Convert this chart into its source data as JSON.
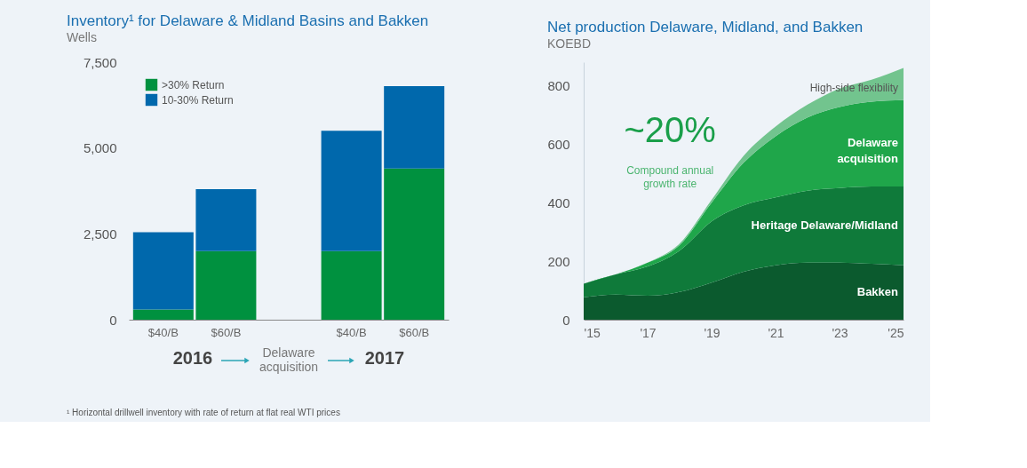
{
  "chart_data": [
    {
      "type": "bar",
      "title": "Inventory¹ for Delaware & Midland Basins and Bakken",
      "ylabel": "Wells",
      "categories": [
        "$40/B",
        "$60/B",
        null,
        "$40/B",
        "$60/B"
      ],
      "series": [
        {
          "name": ">30% Return",
          "color": "#00913f",
          "values": [
            300,
            2000,
            null,
            2000,
            4400
          ]
        },
        {
          "name": "10-30% Return",
          "color": "#0068ac",
          "values": [
            2250,
            1800,
            null,
            3500,
            2400
          ]
        }
      ],
      "stacked": true,
      "ylim": [
        0,
        7500
      ],
      "yticks": [
        0,
        {
          "value": 2500,
          "label": "2,500"
        },
        {
          "value": 5000,
          "label": "5,000"
        },
        {
          "value": 7500,
          "label": "7,500"
        }
      ],
      "legend": "top left",
      "grid": false,
      "annotations": [
        "2016",
        "Delaware acquisition",
        "2017",
        "¹ Horizontal drillwell inventory with rate of return at flat real WTI prices"
      ]
    },
    {
      "type": "area",
      "title": "Net production Delaware, Midland, and Bakken",
      "ylabel": "KOEBD",
      "x": [
        2015,
        2016,
        2017,
        2018,
        2019,
        2020,
        2021,
        2022,
        2023,
        2024,
        2025
      ],
      "series": [
        {
          "name": "Bakken",
          "color": "#0b5a2e",
          "values": [
            77,
            86,
            82,
            95,
            127,
            164,
            186,
            195,
            195,
            191,
            186
          ]
        },
        {
          "name": "Heritage Delaware/Midland",
          "color": "#0f7a3a",
          "values": [
            46,
            69,
            100,
            141,
            209,
            227,
            232,
            246,
            255,
            264,
            269
          ]
        },
        {
          "name": "Delaware acquisition",
          "color": "#1fa64a",
          "values": [
            0,
            0,
            13,
            19,
            64,
            145,
            209,
            250,
            277,
            290,
            295
          ]
        },
        {
          "name": "High-side flexibility",
          "color": "#72c48e",
          "values": [
            0,
            0,
            0,
            5,
            10,
            24,
            33,
            44,
            63,
            75,
            110
          ]
        }
      ],
      "stacked": true,
      "xlim": [
        2015,
        2025
      ],
      "ylim": [
        0,
        880
      ],
      "xticks": [
        {
          "value": 2015,
          "label": "'15"
        },
        {
          "value": 2017,
          "label": "'17"
        },
        {
          "value": 2019,
          "label": "'19"
        },
        {
          "value": 2021,
          "label": "'21"
        },
        {
          "value": 2023,
          "label": "'23"
        },
        {
          "value": 2025,
          "label": "'25"
        }
      ],
      "yticks": [
        0,
        200,
        400,
        600,
        800
      ],
      "grid": false,
      "legend": false,
      "annotations": [
        "~20%",
        "Compound annual growth rate"
      ]
    }
  ]
}
